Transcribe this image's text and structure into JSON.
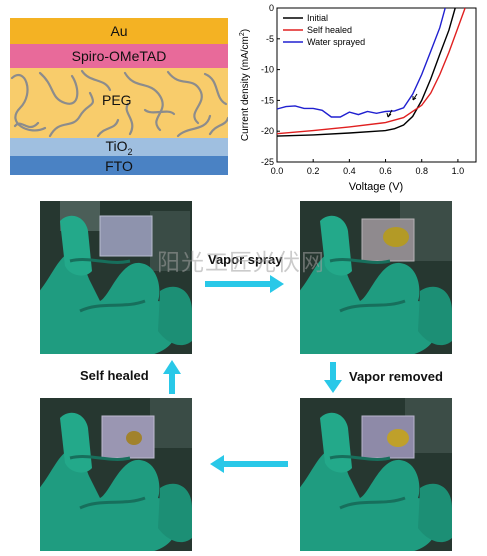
{
  "stack": {
    "layers": [
      "Au",
      "Spiro-OMeTAD",
      "PEG",
      "TiO",
      "FTO"
    ],
    "tio2_subscript": "2",
    "colors": {
      "au": "#f4b223",
      "spiro": "#e86a9a",
      "peg": "#f8cc6b",
      "tio2": "#9fbfe0",
      "fto": "#4a82c4"
    }
  },
  "chart_data": {
    "type": "line",
    "xlabel": "Voltage (V)",
    "ylabel": "Current density (mA/cm",
    "ylabel_sup": "2",
    "ylabel_close": ")",
    "xlim": [
      0.0,
      1.1
    ],
    "ylim": [
      -25,
      0
    ],
    "xticks": [
      "0.0",
      "0.2",
      "0.4",
      "0.6",
      "0.8",
      "1.0"
    ],
    "yticks": [
      "0",
      "-5",
      "-10",
      "-15",
      "-20",
      "-25"
    ],
    "legend_position": "top-left",
    "series": [
      {
        "name": "Initial",
        "color": "#000000",
        "points": [
          [
            0.0,
            -20.8
          ],
          [
            0.2,
            -20.6
          ],
          [
            0.4,
            -20.3
          ],
          [
            0.6,
            -19.9
          ],
          [
            0.65,
            -19.6
          ],
          [
            0.7,
            -19.0
          ],
          [
            0.75,
            -17.6
          ],
          [
            0.8,
            -15.0
          ],
          [
            0.85,
            -11.5
          ],
          [
            0.9,
            -7.5
          ],
          [
            0.95,
            -3.6
          ],
          [
            0.985,
            0.0
          ]
        ]
      },
      {
        "name": "Self healed",
        "color": "#e02020",
        "points": [
          [
            0.0,
            -20.4
          ],
          [
            0.2,
            -19.9
          ],
          [
            0.4,
            -19.3
          ],
          [
            0.6,
            -18.6
          ],
          [
            0.7,
            -17.8
          ],
          [
            0.8,
            -15.8
          ],
          [
            0.85,
            -13.8
          ],
          [
            0.9,
            -10.8
          ],
          [
            0.95,
            -7.2
          ],
          [
            1.0,
            -3.2
          ],
          [
            1.04,
            0.0
          ]
        ]
      },
      {
        "name": "Water sprayed",
        "color": "#2020d0",
        "points": [
          [
            0.0,
            -16.4
          ],
          [
            0.05,
            -16.0
          ],
          [
            0.1,
            -15.9
          ],
          [
            0.15,
            -16.3
          ],
          [
            0.2,
            -16.3
          ],
          [
            0.25,
            -16.6
          ],
          [
            0.3,
            -17.7
          ],
          [
            0.35,
            -17.7
          ],
          [
            0.4,
            -16.9
          ],
          [
            0.45,
            -17.3
          ],
          [
            0.5,
            -16.8
          ],
          [
            0.55,
            -17.1
          ],
          [
            0.6,
            -16.8
          ],
          [
            0.65,
            -16.7
          ],
          [
            0.7,
            -16.2
          ],
          [
            0.75,
            -14.0
          ],
          [
            0.8,
            -10.8
          ],
          [
            0.85,
            -7.0
          ],
          [
            0.9,
            -3.2
          ],
          [
            0.93,
            0.0
          ]
        ]
      }
    ]
  },
  "photos": {
    "top_left": {
      "glove_color": "#1f9c80",
      "sample_color": "#8e93ad"
    },
    "top_right": {
      "glove_color": "#1f9c80",
      "sample_color": "#8f8a8e",
      "spot_color": "#b39a26"
    },
    "bottom_left": {
      "glove_color": "#1f9c80",
      "sample_color": "#9a96b2",
      "spot_color": "#a1822c"
    },
    "bottom_right": {
      "glove_color": "#1f9c80",
      "sample_color": "#8e8aa8",
      "spot_color": "#bfa02a"
    }
  },
  "arrows": {
    "color": "#29c8e8",
    "vapor_spray": "Vapor spray",
    "vapor_removed": "Vapor removed",
    "self_healed": "Self healed"
  },
  "watermark": "阳光工匠光伏网"
}
